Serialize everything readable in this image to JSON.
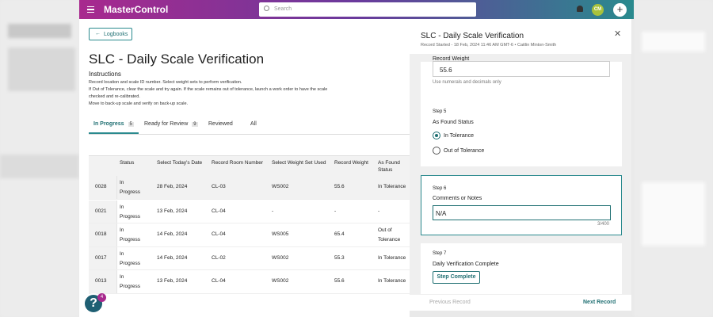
{
  "topbar": {
    "brand": "MasterControl",
    "search_placeholder": "Search",
    "avatar": "CM"
  },
  "main": {
    "back_button": "Logbooks",
    "title": "SLC - Daily Scale Verification",
    "instructions_heading": "Instructions",
    "instructions": [
      "Record location and scale ID number. Select weight sets to perform verification.",
      "If Out of Tolerance, clear the scale and try again. If the scale remains out of tolerance, launch a work order to have the scale",
      "checked and re-calibrated.",
      "Move to back-up scale and verify on back-up scale."
    ],
    "tabs": [
      {
        "label": "In Progress",
        "count": "5"
      },
      {
        "label": "Ready for Review",
        "count": "9"
      },
      {
        "label": "Reviewed"
      },
      {
        "label": "All"
      }
    ],
    "table": {
      "columns": [
        "Status",
        "Select Today's Date",
        "Record Room Number",
        "Select Weight Set Used",
        "Record Weight",
        "As Found Status"
      ],
      "rows": [
        [
          "0028",
          "In Progress",
          "28 Feb, 2024",
          "CL-03",
          "WS002",
          "55.6",
          "In Tolerance"
        ],
        [
          "0021",
          "In Progress",
          "13 Feb, 2024",
          "CL-04",
          "-",
          "-",
          "-"
        ],
        [
          "0018",
          "In Progress",
          "14 Feb, 2024",
          "CL-04",
          "WS005",
          "65.4",
          "Out of Tolerance"
        ],
        [
          "0017",
          "In Progress",
          "14 Feb, 2024",
          "CL-02",
          "WS002",
          "55.3",
          "In Tolerance"
        ],
        [
          "0013",
          "In Progress",
          "13 Feb, 2024",
          "CL-04",
          "WS002",
          "55.6",
          "In Tolerance"
        ]
      ]
    },
    "help_badge": "4"
  },
  "panel": {
    "title": "SLC - Daily Scale Verification",
    "subtitle": "Record Started - 18 Feb, 2024 11:46 AM GMT-6 • Caitlin Minton-Smith",
    "step4": {
      "label": "Record Weight",
      "value": "55.6",
      "hint": "Use numerals and decimals only"
    },
    "step5": {
      "step": "Step 5",
      "label": "As Found Status",
      "options": [
        "In Tolerance",
        "Out of Tolerance"
      ]
    },
    "step6": {
      "step": "Step 6",
      "label": "Comments or Notes",
      "value": "N/A",
      "counter": "3/400"
    },
    "step7": {
      "step": "Step 7",
      "label": "Daily Verification Complete",
      "button": "Step Complete"
    },
    "previous": "Previous Record",
    "next": "Next Record"
  }
}
